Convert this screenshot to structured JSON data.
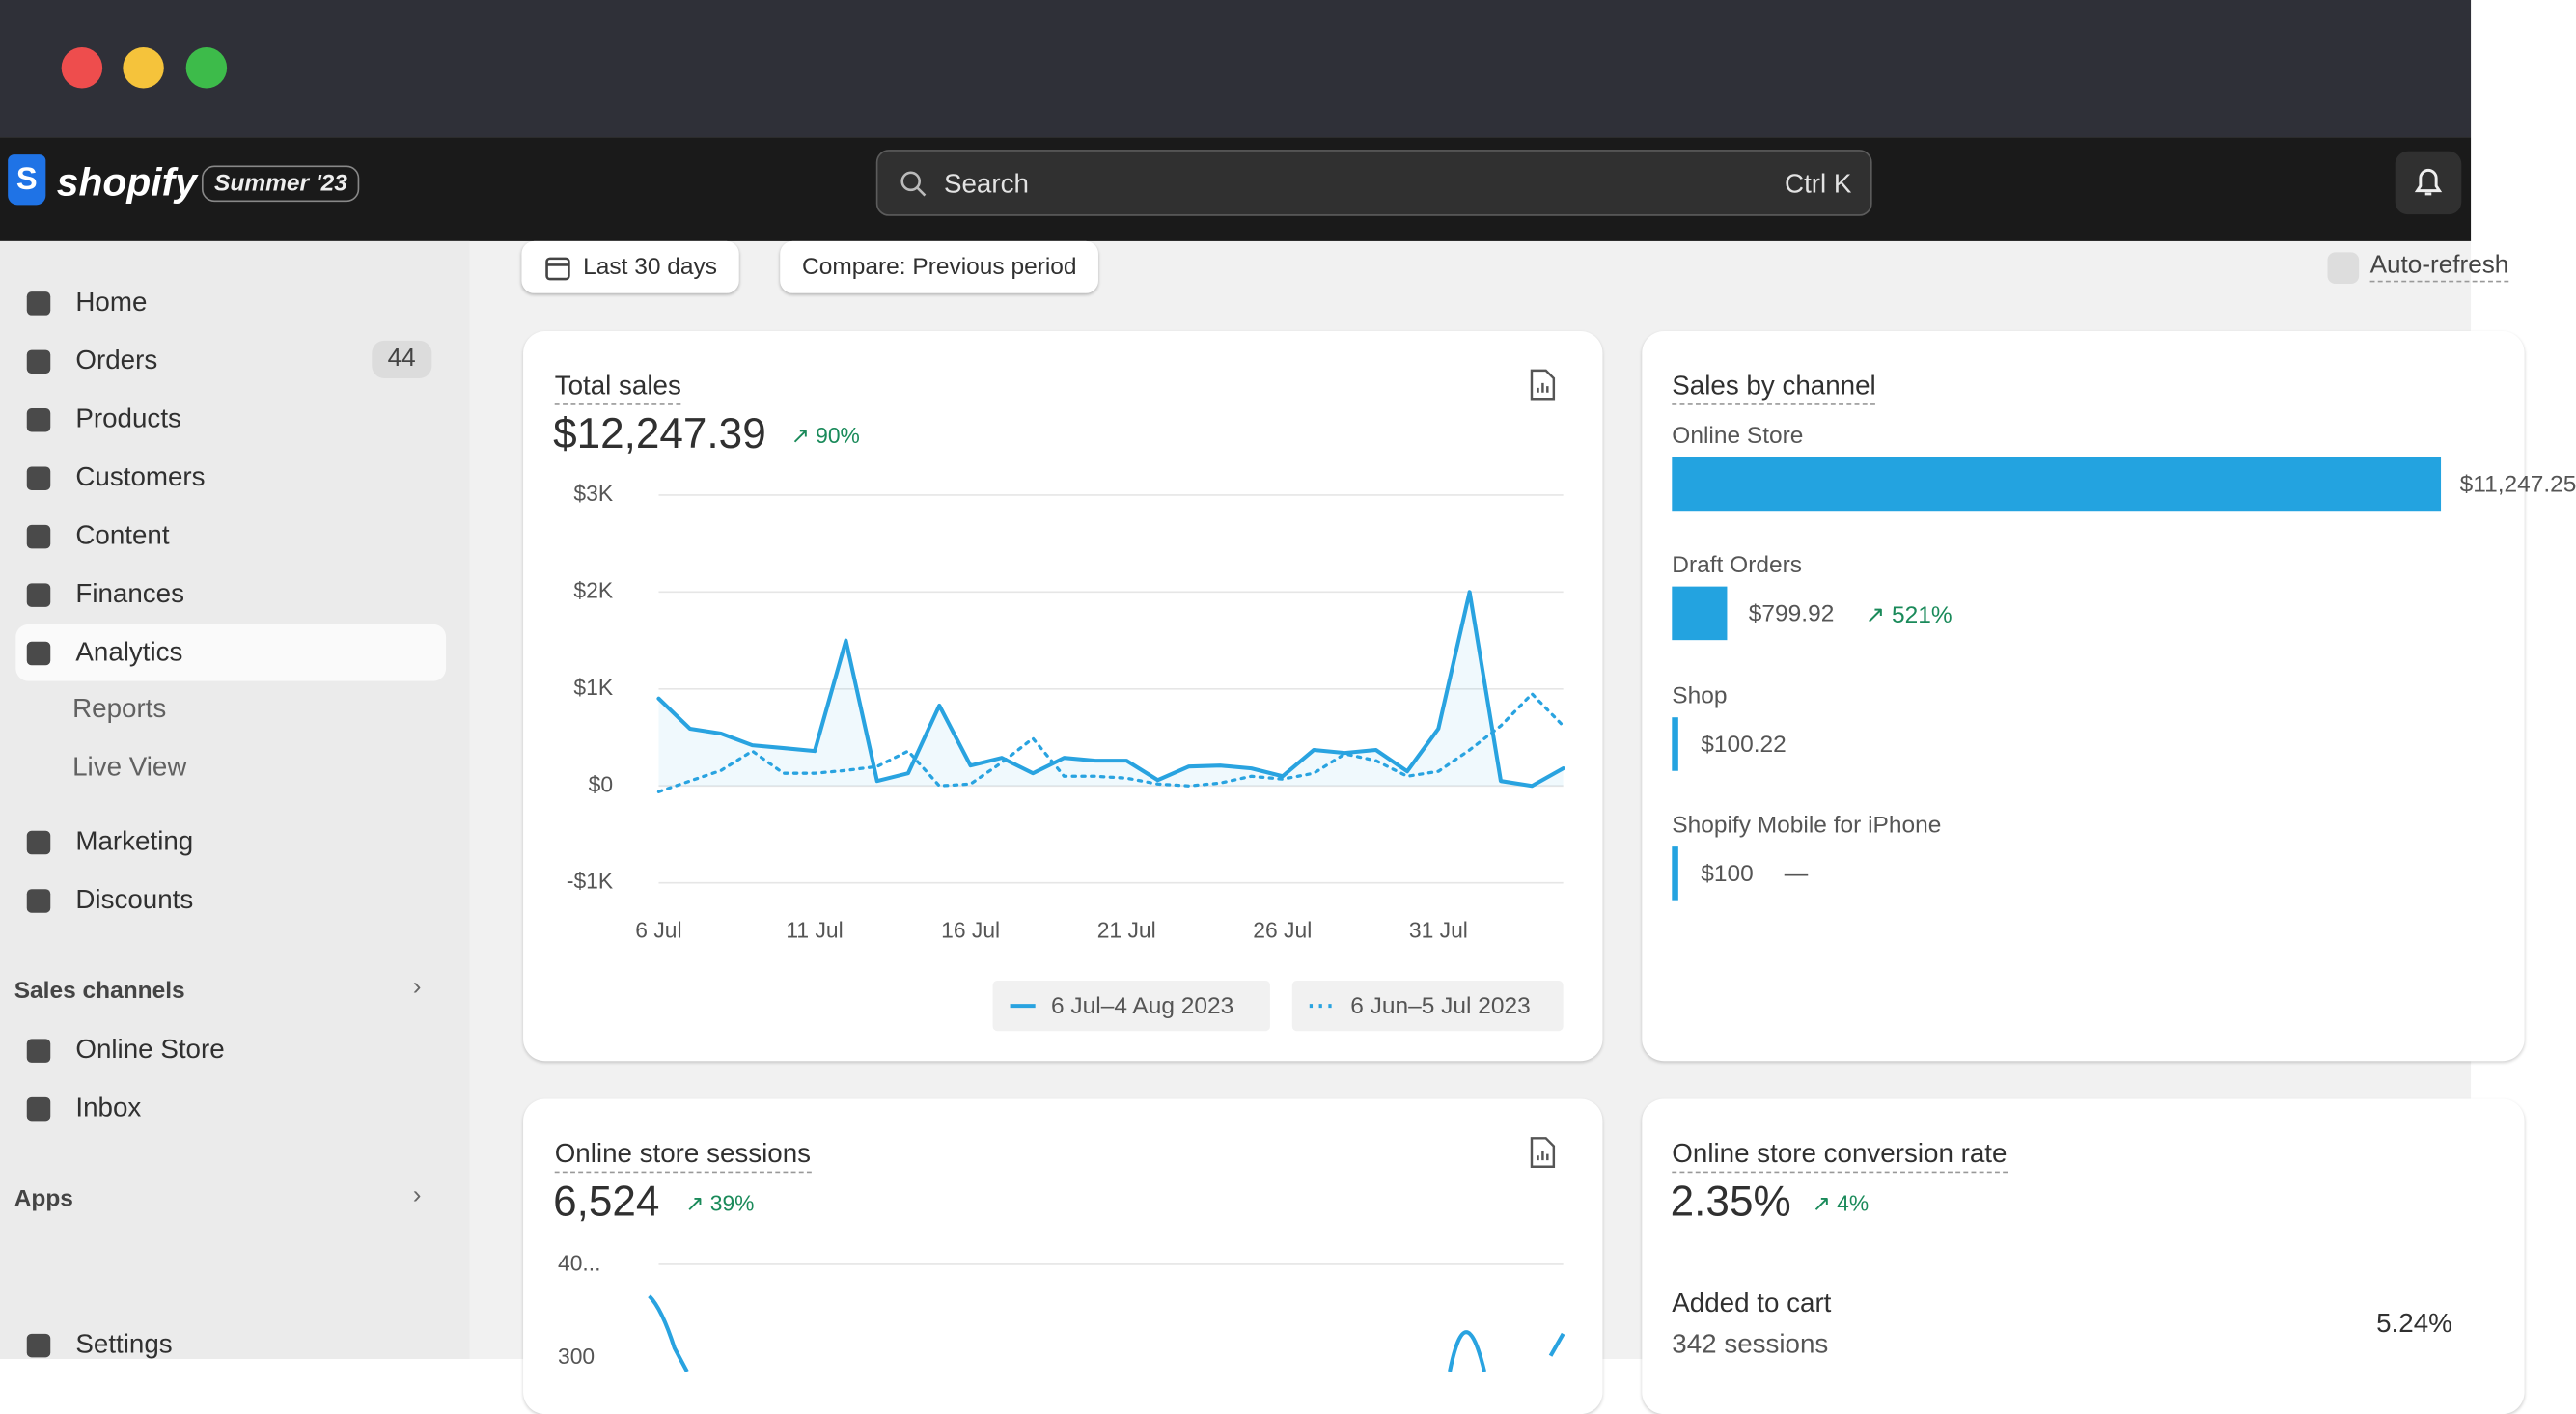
{
  "topbar": {
    "brand": "shopify",
    "badge": "Summer '23",
    "search": "Search",
    "shortcut": "Ctrl K"
  },
  "sidebar": {
    "items": [
      "Home",
      "Orders",
      "Products",
      "Customers",
      "Content",
      "Finances",
      "Analytics"
    ],
    "orders_count": "44",
    "analytics_sub": [
      "Reports",
      "Live View"
    ],
    "items2": [
      "Marketing",
      "Discounts"
    ],
    "sales_channels": "Sales channels",
    "channels": [
      "Online Store",
      "Inbox"
    ],
    "apps": "Apps",
    "settings": "Settings"
  },
  "filters": {
    "date": "Last 30 days",
    "compare": "Compare: Previous period",
    "auto": "Auto-refresh"
  },
  "total_sales": {
    "title": "Total sales",
    "value": "$12,247.39",
    "change": "90%",
    "chart": {
      "type": "line",
      "categories": [
        "6 Jul",
        null,
        null,
        null,
        null,
        "11 Jul",
        null,
        null,
        null,
        null,
        "16 Jul",
        null,
        null,
        null,
        null,
        "21 Jul",
        null,
        null,
        null,
        null,
        "26 Jul",
        null,
        null,
        null,
        null,
        "31 Jul",
        null,
        null,
        null,
        null
      ],
      "ylim": [
        -1000,
        3000
      ],
      "yticks": [
        {
          "value": -1000,
          "label": "-$1K"
        },
        {
          "value": 0,
          "label": "$0"
        },
        {
          "value": 1000,
          "label": "$1K"
        },
        {
          "value": 2000,
          "label": "$2K"
        },
        {
          "value": 3000,
          "label": "$3K"
        }
      ],
      "series": [
        {
          "name": "6 Jul–4 Aug 2023",
          "color": "#29a3e0",
          "values": [
            900,
            590,
            540,
            420,
            390,
            360,
            1500,
            50,
            130,
            830,
            210,
            290,
            130,
            290,
            260,
            260,
            60,
            200,
            210,
            180,
            100,
            370,
            340,
            370,
            150,
            590,
            2000,
            50,
            0,
            180
          ]
        },
        {
          "name": "6 Jun–5 Jul 2023",
          "color": "#29a3e0",
          "values": [
            -60,
            50,
            160,
            360,
            130,
            130,
            160,
            200,
            360,
            0,
            20,
            240,
            490,
            100,
            100,
            80,
            20,
            0,
            30,
            100,
            70,
            130,
            330,
            260,
            100,
            150,
            370,
            620,
            950,
            620
          ]
        }
      ]
    }
  },
  "sales_by_channel": {
    "title": "Sales by channel",
    "channels": [
      "Online Store",
      "Draft Orders",
      "Shop",
      "Shopify Mobile for iPhone"
    ],
    "values": [
      11247.25,
      799.92,
      100.22,
      100
    ],
    "value_labels": [
      "$11,247.25",
      "$799.92",
      "$100.22",
      "$100"
    ],
    "changes": [
      null,
      "521%",
      null,
      "—"
    ]
  },
  "sessions": {
    "title": "Online store sessions",
    "value": "6,524",
    "change": "39%",
    "tick_labels": [
      "40...",
      "300"
    ]
  },
  "conversion": {
    "title": "Online store conversion rate",
    "value": "2.35%",
    "change": "4%",
    "row_label": "Added to cart",
    "row_sessions": "342 sessions",
    "row_value": "5.24%"
  }
}
